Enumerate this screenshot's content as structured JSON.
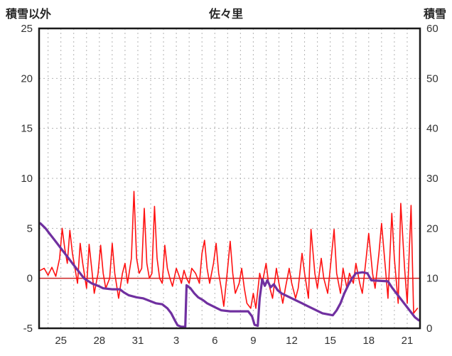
{
  "chart_data": {
    "type": "line",
    "title": "佐々里",
    "left_axis_title": "積雪以外",
    "right_axis_title": "積雪",
    "grid": true,
    "legend": "none",
    "left_axis": {
      "min": -5,
      "max": 25,
      "ticks": [
        25,
        20,
        15,
        10,
        5,
        0,
        -5
      ]
    },
    "right_axis": {
      "min": 0,
      "max": 60,
      "ticks": [
        60,
        50,
        40,
        30,
        20,
        10,
        0
      ]
    },
    "x_axis": {
      "min": 23.3,
      "max": 53.0,
      "tick_positions": [
        25,
        28,
        31,
        34,
        37,
        40,
        43,
        46,
        49,
        52
      ],
      "tick_labels": [
        "25",
        "28",
        "31",
        "3",
        "6",
        "9",
        "12",
        "15",
        "18",
        "21"
      ],
      "day_gridlines_from": 24,
      "day_gridlines_to": 52
    },
    "zero_line_value": 0,
    "colors": {
      "red_series": "#ff1111",
      "purple_series": "#7030a0",
      "grid": "#b3b3b3",
      "border": "#1a1a1a",
      "zero_line": "#cc2222",
      "text": "#333333"
    },
    "series": [
      {
        "name": "red",
        "axis": "left",
        "color_key": "red_series",
        "width": 1.6,
        "points": [
          [
            23.4,
            0.8
          ],
          [
            23.7,
            1.0
          ],
          [
            24.0,
            0.3
          ],
          [
            24.3,
            1.1
          ],
          [
            24.6,
            0.2
          ],
          [
            24.9,
            2.0
          ],
          [
            25.1,
            5.0
          ],
          [
            25.3,
            3.0
          ],
          [
            25.5,
            1.5
          ],
          [
            25.7,
            4.8
          ],
          [
            25.9,
            2.5
          ],
          [
            26.1,
            1.0
          ],
          [
            26.3,
            -0.5
          ],
          [
            26.5,
            3.5
          ],
          [
            26.7,
            1.5
          ],
          [
            27.0,
            -1.0
          ],
          [
            27.2,
            3.4
          ],
          [
            27.4,
            1.0
          ],
          [
            27.6,
            -1.5
          ],
          [
            27.9,
            0.5
          ],
          [
            28.1,
            3.3
          ],
          [
            28.3,
            0.5
          ],
          [
            28.5,
            -1.0
          ],
          [
            28.8,
            0.0
          ],
          [
            29.0,
            3.5
          ],
          [
            29.2,
            0.5
          ],
          [
            29.5,
            -2.0
          ],
          [
            29.8,
            0.5
          ],
          [
            30.0,
            1.5
          ],
          [
            30.2,
            -0.5
          ],
          [
            30.5,
            2.0
          ],
          [
            30.7,
            8.7
          ],
          [
            30.9,
            2.0
          ],
          [
            31.1,
            0.5
          ],
          [
            31.3,
            1.0
          ],
          [
            31.5,
            7.0
          ],
          [
            31.7,
            1.5
          ],
          [
            31.9,
            0.0
          ],
          [
            32.1,
            0.5
          ],
          [
            32.3,
            7.2
          ],
          [
            32.5,
            2.0
          ],
          [
            32.7,
            0.0
          ],
          [
            32.9,
            -0.5
          ],
          [
            33.1,
            3.3
          ],
          [
            33.3,
            1.0
          ],
          [
            33.5,
            0.0
          ],
          [
            33.7,
            -0.8
          ],
          [
            34.0,
            1.0
          ],
          [
            34.2,
            0.3
          ],
          [
            34.4,
            -0.5
          ],
          [
            34.6,
            0.8
          ],
          [
            34.8,
            0.0
          ],
          [
            35.0,
            -0.5
          ],
          [
            35.2,
            1.0
          ],
          [
            35.5,
            0.5
          ],
          [
            35.8,
            -0.5
          ],
          [
            36.0,
            2.5
          ],
          [
            36.2,
            3.8
          ],
          [
            36.4,
            1.0
          ],
          [
            36.6,
            -0.5
          ],
          [
            36.9,
            1.5
          ],
          [
            37.1,
            3.5
          ],
          [
            37.3,
            0.5
          ],
          [
            37.5,
            -1.0
          ],
          [
            37.7,
            -2.8
          ],
          [
            38.0,
            1.0
          ],
          [
            38.2,
            3.7
          ],
          [
            38.4,
            0.5
          ],
          [
            38.6,
            -1.5
          ],
          [
            38.9,
            -0.5
          ],
          [
            39.1,
            1.0
          ],
          [
            39.3,
            -1.0
          ],
          [
            39.5,
            -2.5
          ],
          [
            39.8,
            -3.0
          ],
          [
            40.0,
            -1.5
          ],
          [
            40.2,
            -3.0
          ],
          [
            40.5,
            0.5
          ],
          [
            40.7,
            -0.5
          ],
          [
            41.0,
            1.5
          ],
          [
            41.2,
            -0.5
          ],
          [
            41.5,
            -2.0
          ],
          [
            41.8,
            1.0
          ],
          [
            42.0,
            -0.5
          ],
          [
            42.3,
            -2.5
          ],
          [
            42.5,
            -1.0
          ],
          [
            42.8,
            1.0
          ],
          [
            43.0,
            -0.5
          ],
          [
            43.3,
            -2.0
          ],
          [
            43.5,
            -1.0
          ],
          [
            43.8,
            2.5
          ],
          [
            44.0,
            0.5
          ],
          [
            44.3,
            -2.0
          ],
          [
            44.5,
            4.9
          ],
          [
            44.8,
            0.5
          ],
          [
            45.0,
            -1.0
          ],
          [
            45.3,
            2.0
          ],
          [
            45.5,
            0.0
          ],
          [
            45.8,
            -1.5
          ],
          [
            46.0,
            1.0
          ],
          [
            46.3,
            4.9
          ],
          [
            46.5,
            0.5
          ],
          [
            46.8,
            -1.5
          ],
          [
            47.0,
            1.0
          ],
          [
            47.3,
            -1.0
          ],
          [
            47.5,
            0.5
          ],
          [
            47.8,
            -0.5
          ],
          [
            48.0,
            1.5
          ],
          [
            48.3,
            -0.5
          ],
          [
            48.5,
            -1.5
          ],
          [
            48.8,
            2.0
          ],
          [
            49.0,
            4.5
          ],
          [
            49.3,
            0.5
          ],
          [
            49.5,
            -1.0
          ],
          [
            49.8,
            2.5
          ],
          [
            50.0,
            5.5
          ],
          [
            50.3,
            1.0
          ],
          [
            50.5,
            -2.0
          ],
          [
            50.8,
            6.5
          ],
          [
            51.0,
            2.0
          ],
          [
            51.3,
            -2.5
          ],
          [
            51.5,
            7.5
          ],
          [
            51.8,
            1.0
          ],
          [
            52.0,
            -2.5
          ],
          [
            52.3,
            7.3
          ],
          [
            52.5,
            -3.5
          ],
          [
            52.8,
            -3.0
          ]
        ]
      },
      {
        "name": "purple",
        "axis": "right",
        "color_key": "purple_series",
        "width": 3.2,
        "points": [
          [
            23.4,
            21
          ],
          [
            23.8,
            20
          ],
          [
            24.1,
            19
          ],
          [
            24.4,
            18
          ],
          [
            24.7,
            17
          ],
          [
            25.0,
            16
          ],
          [
            25.3,
            15
          ],
          [
            25.6,
            14
          ],
          [
            25.9,
            13
          ],
          [
            26.2,
            12
          ],
          [
            26.5,
            11
          ],
          [
            26.8,
            10
          ],
          [
            27.1,
            9.5
          ],
          [
            27.4,
            9.0
          ],
          [
            27.9,
            8.5
          ],
          [
            28.3,
            8.0
          ],
          [
            29.0,
            7.8
          ],
          [
            29.6,
            7.8
          ],
          [
            29.9,
            7.2
          ],
          [
            30.3,
            6.6
          ],
          [
            30.9,
            6.2
          ],
          [
            31.4,
            6.0
          ],
          [
            31.9,
            5.5
          ],
          [
            32.4,
            5.0
          ],
          [
            32.9,
            4.8
          ],
          [
            33.3,
            4.0
          ],
          [
            33.6,
            3.0
          ],
          [
            33.9,
            1.5
          ],
          [
            34.1,
            0.6
          ],
          [
            34.4,
            0.3
          ],
          [
            34.7,
            0.3
          ],
          [
            34.8,
            8.6
          ],
          [
            35.1,
            8.0
          ],
          [
            35.4,
            7.0
          ],
          [
            35.7,
            6.2
          ],
          [
            36.1,
            5.6
          ],
          [
            36.4,
            5.0
          ],
          [
            36.7,
            4.6
          ],
          [
            37.1,
            4.1
          ],
          [
            37.5,
            3.6
          ],
          [
            38.2,
            3.4
          ],
          [
            39.6,
            3.4
          ],
          [
            39.9,
            2.4
          ],
          [
            40.1,
            0.7
          ],
          [
            40.35,
            0.5
          ],
          [
            40.5,
            6.0
          ],
          [
            40.7,
            9.8
          ],
          [
            40.9,
            8.5
          ],
          [
            41.1,
            9.6
          ],
          [
            41.35,
            8.2
          ],
          [
            41.6,
            8.8
          ],
          [
            41.9,
            7.6
          ],
          [
            42.2,
            7.0
          ],
          [
            42.6,
            6.5
          ],
          [
            43.0,
            6.0
          ],
          [
            43.4,
            5.5
          ],
          [
            43.8,
            5.0
          ],
          [
            44.2,
            4.5
          ],
          [
            44.6,
            4.0
          ],
          [
            45.0,
            3.5
          ],
          [
            45.4,
            3.0
          ],
          [
            45.8,
            2.8
          ],
          [
            46.2,
            2.6
          ],
          [
            46.5,
            3.6
          ],
          [
            46.8,
            5.0
          ],
          [
            47.1,
            7.0
          ],
          [
            47.4,
            8.6
          ],
          [
            47.7,
            10.0
          ],
          [
            48.0,
            11.0
          ],
          [
            48.5,
            11.2
          ],
          [
            48.9,
            11.0
          ],
          [
            49.2,
            9.6
          ],
          [
            50.5,
            9.4
          ],
          [
            50.8,
            8.2
          ],
          [
            51.1,
            7.2
          ],
          [
            51.4,
            6.2
          ],
          [
            51.7,
            5.2
          ],
          [
            52.0,
            4.2
          ],
          [
            52.3,
            3.2
          ],
          [
            52.6,
            2.2
          ],
          [
            52.9,
            1.6
          ]
        ]
      }
    ]
  }
}
